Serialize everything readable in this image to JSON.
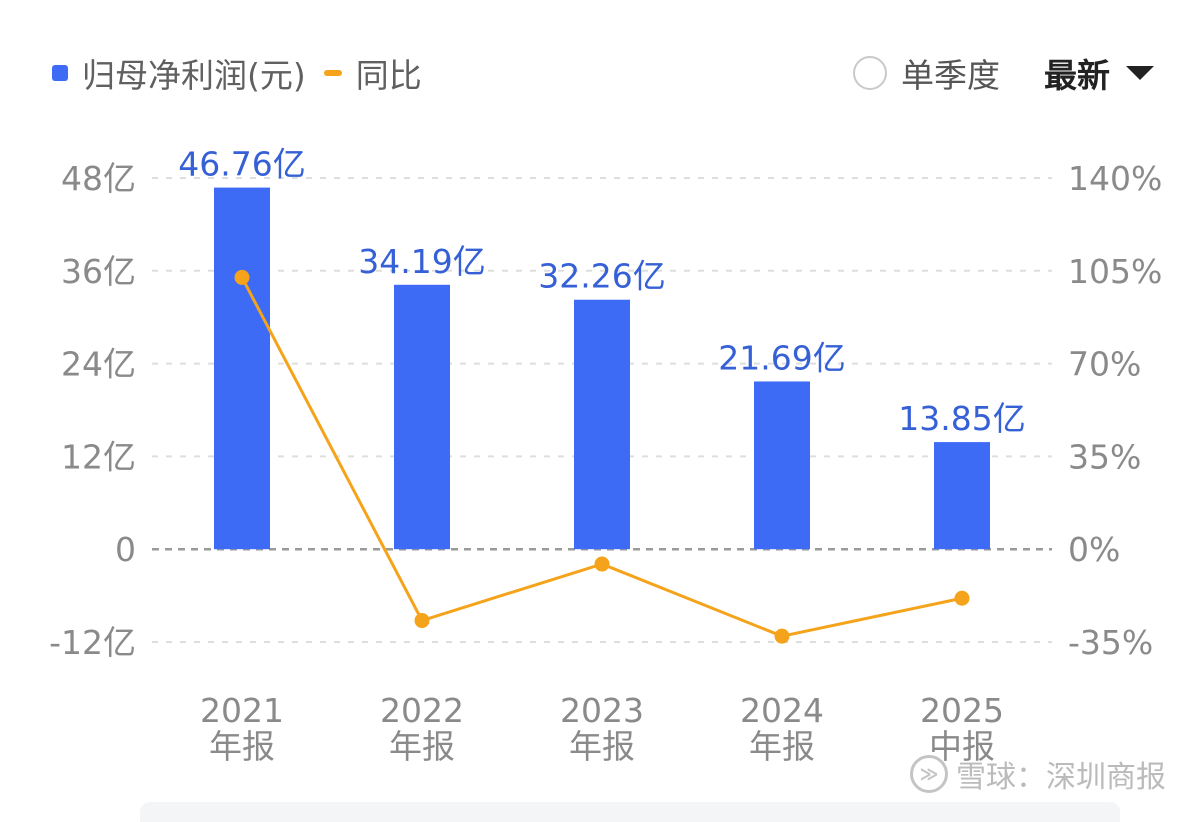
{
  "legend": {
    "bar_label": "归母净利润(元)",
    "line_label": "同比"
  },
  "controls": {
    "single_quarter_label": "单季度",
    "period_select_value": "最新"
  },
  "watermark": {
    "text": "雪球：深圳商报"
  },
  "colors": {
    "bar": "#3d6bf5",
    "line": "#f5a31a",
    "bar_label": "#3560d6",
    "axis_text": "#8a8a8a",
    "grid": "#dedede",
    "zero_line": "#9a9a9a"
  },
  "chart_data": {
    "type": "bar",
    "title": "",
    "categories": [
      {
        "year": "2021",
        "period": "年报"
      },
      {
        "year": "2022",
        "period": "年报"
      },
      {
        "year": "2023",
        "period": "年报"
      },
      {
        "year": "2024",
        "period": "年报"
      },
      {
        "year": "2025",
        "period": "中报"
      }
    ],
    "series": [
      {
        "name": "归母净利润(元)",
        "type": "bar",
        "axis": "left",
        "values": [
          46.76,
          34.19,
          32.26,
          21.69,
          13.85
        ],
        "labels": [
          "46.76亿",
          "34.19亿",
          "32.26亿",
          "21.69亿",
          "13.85亿"
        ]
      },
      {
        "name": "同比",
        "type": "line",
        "axis": "right",
        "values": [
          102.5,
          -26.9,
          -5.6,
          -32.8,
          -18.5
        ]
      }
    ],
    "y_left": {
      "ylim": [
        -12,
        48
      ],
      "ticks": [
        48,
        36,
        24,
        12,
        0,
        -12
      ],
      "tick_labels": [
        "48亿",
        "36亿",
        "24亿",
        "12亿",
        "0",
        "-12亿"
      ]
    },
    "y_right": {
      "ylim": [
        -35,
        140
      ],
      "ticks": [
        140,
        105,
        70,
        35,
        0,
        -35
      ],
      "tick_labels": [
        "140%",
        "105%",
        "70%",
        "35%",
        "0%",
        "-35%"
      ]
    },
    "grid": true
  }
}
